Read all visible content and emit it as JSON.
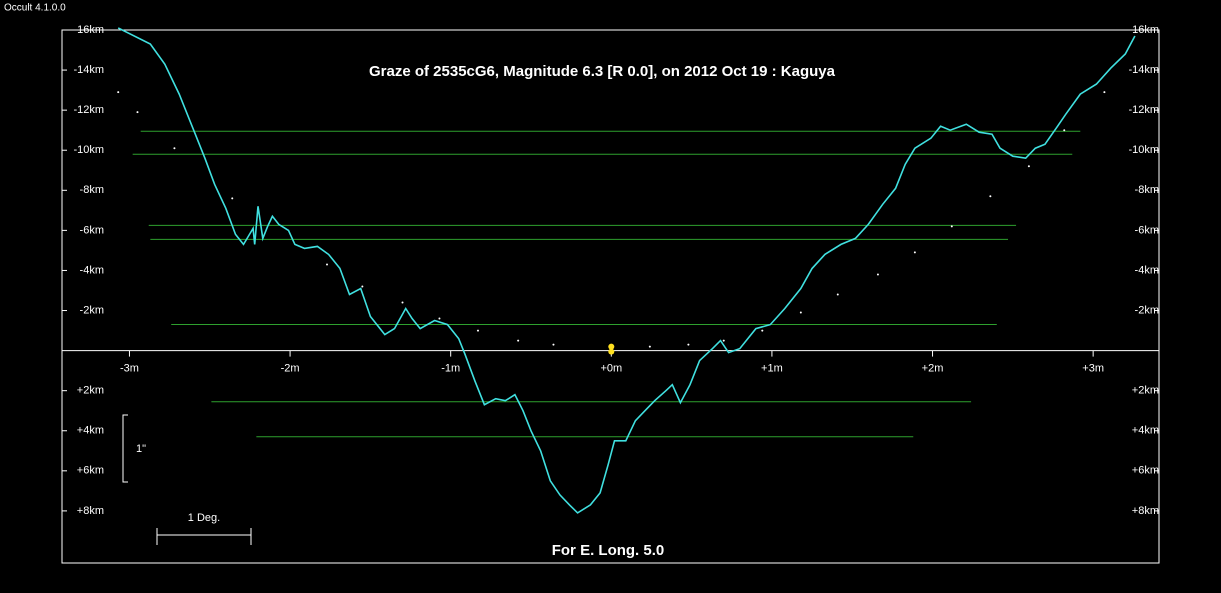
{
  "window_title": "Occult 4.1.0.0",
  "chart_data": {
    "type": "line",
    "title": "Graze of  2535cG6,  Magnitude 6.3 [R 0.0],  on 2012 Oct 19  :  Kaguya",
    "subtitle": "For E. Long. 5.0",
    "scale_labels": [
      "1\"",
      "1 Deg."
    ],
    "xlim": [
      -3.42,
      3.41
    ],
    "ylim": [
      -16,
      10.6
    ],
    "y_inverted": true,
    "xticks": [
      {
        "value": -3,
        "label": "-3m"
      },
      {
        "value": -2,
        "label": "-2m"
      },
      {
        "value": -1,
        "label": "-1m"
      },
      {
        "value": 0,
        "label": "+0m"
      },
      {
        "value": 1,
        "label": "+1m"
      },
      {
        "value": 2,
        "label": "+2m"
      },
      {
        "value": 3,
        "label": "+3m"
      }
    ],
    "yticks": [
      {
        "value": -16,
        "label": "-16km"
      },
      {
        "value": -14,
        "label": "-14km"
      },
      {
        "value": -12,
        "label": "-12km"
      },
      {
        "value": -10,
        "label": "-10km"
      },
      {
        "value": -8,
        "label": "-8km"
      },
      {
        "value": -6,
        "label": "-6km"
      },
      {
        "value": -4,
        "label": "-4km"
      },
      {
        "value": -2,
        "label": "-2km"
      },
      {
        "value": 2,
        "label": "+2km"
      },
      {
        "value": 4,
        "label": "+4km"
      },
      {
        "value": 6,
        "label": "+6km"
      },
      {
        "value": 8,
        "label": "+8km"
      }
    ],
    "series": [
      {
        "color": "#40e0e0",
        "x": [
          -3.07,
          -2.87,
          -2.78,
          -2.69,
          -2.59,
          -2.53,
          -2.47,
          -2.4,
          -2.34,
          -2.29,
          -2.26,
          -2.23,
          -2.22,
          -2.2,
          -2.17,
          -2.14,
          -2.11,
          -2.07,
          -2.01,
          -1.97,
          -1.91,
          -1.83,
          -1.76,
          -1.69,
          -1.63,
          -1.56,
          -1.5,
          -1.41,
          -1.35,
          -1.28,
          -1.24,
          -1.19,
          -1.1,
          -1.02,
          -0.95,
          -0.91,
          -0.85,
          -0.79,
          -0.72,
          -0.66,
          -0.6,
          -0.55,
          -0.5,
          -0.44,
          -0.38,
          -0.32,
          -0.26,
          -0.21,
          -0.13,
          -0.07,
          -0.02,
          0.02,
          0.09,
          0.15,
          0.21,
          0.27,
          0.34,
          0.38,
          0.43,
          0.49,
          0.55,
          0.63,
          0.68,
          0.73,
          0.8,
          0.9,
          0.99,
          1.08,
          1.18,
          1.25,
          1.33,
          1.43,
          1.52,
          1.6,
          1.69,
          1.77,
          1.83,
          1.89,
          1.99,
          2.05,
          2.11,
          2.21,
          2.29,
          2.37,
          2.42,
          2.5,
          2.58,
          2.64,
          2.7,
          2.77,
          2.83,
          2.92,
          3.02,
          3.11,
          3.2,
          3.26
        ],
        "values": [
          -16.1,
          -15.3,
          -14.3,
          -12.8,
          -10.8,
          -9.6,
          -8.3,
          -7.1,
          -5.8,
          -5.3,
          -5.7,
          -6.1,
          -5.3,
          -7.2,
          -5.6,
          -6.2,
          -6.7,
          -6.3,
          -6.0,
          -5.3,
          -5.1,
          -5.2,
          -4.8,
          -4.1,
          -2.8,
          -3.1,
          -1.7,
          -0.8,
          -1.1,
          -2.1,
          -1.6,
          -1.1,
          -1.5,
          -1.3,
          -0.6,
          0.2,
          1.5,
          2.7,
          2.4,
          2.5,
          2.2,
          3.0,
          4.0,
          5.0,
          6.5,
          7.2,
          7.7,
          8.1,
          7.7,
          7.1,
          5.7,
          4.5,
          4.5,
          3.5,
          3.0,
          2.5,
          2.0,
          1.7,
          2.6,
          1.7,
          0.5,
          -0.1,
          -0.5,
          0.1,
          -0.1,
          -1.1,
          -1.3,
          -2.1,
          -3.1,
          -4.1,
          -4.8,
          -5.3,
          -5.6,
          -6.3,
          -7.3,
          -8.1,
          -9.3,
          -10.1,
          -10.6,
          -11.2,
          -11.0,
          -11.3,
          -10.9,
          -10.8,
          -10.1,
          -9.7,
          -9.6,
          -10.1,
          -10.3,
          -11.1,
          -11.8,
          -12.8,
          -13.3,
          -14.1,
          -14.8,
          -15.7
        ]
      },
      {
        "color": "#ffffff",
        "x": [
          -3.07,
          -2.95,
          -2.72,
          -2.36,
          -1.77,
          -1.55,
          -1.3,
          -1.07,
          -0.83,
          -0.58,
          -0.36,
          0.24,
          0.48,
          0.7,
          0.94,
          1.18,
          1.41,
          1.66,
          1.89,
          2.12,
          2.36,
          2.6,
          2.82,
          3.07
        ],
        "values": [
          -12.9,
          -11.9,
          -10.1,
          -7.6,
          -4.3,
          -3.2,
          -2.4,
          -1.6,
          -1.0,
          -0.5,
          -0.3,
          -0.2,
          -0.3,
          -0.5,
          -1.0,
          -1.9,
          -2.8,
          -3.8,
          -4.9,
          -6.2,
          -7.7,
          -9.2,
          -11.0,
          -12.9
        ]
      }
    ],
    "limit_lines": [
      {
        "y": -10.95,
        "x": [
          -2.93,
          2.92
        ]
      },
      {
        "y": -9.8,
        "x": [
          -2.98,
          2.87
        ]
      },
      {
        "y": -6.25,
        "x": [
          -2.88,
          2.52
        ]
      },
      {
        "y": -5.55,
        "x": [
          -2.87,
          2.47
        ]
      },
      {
        "y": -1.3,
        "x": [
          -2.74,
          2.4
        ]
      },
      {
        "y": 2.55,
        "x": [
          -2.49,
          2.24
        ]
      },
      {
        "y": 4.3,
        "x": [
          -2.21,
          1.88
        ]
      }
    ],
    "limit_color": "#2ea02e",
    "star": {
      "x": 0,
      "y": -0.1,
      "color": "#ffe020"
    }
  }
}
